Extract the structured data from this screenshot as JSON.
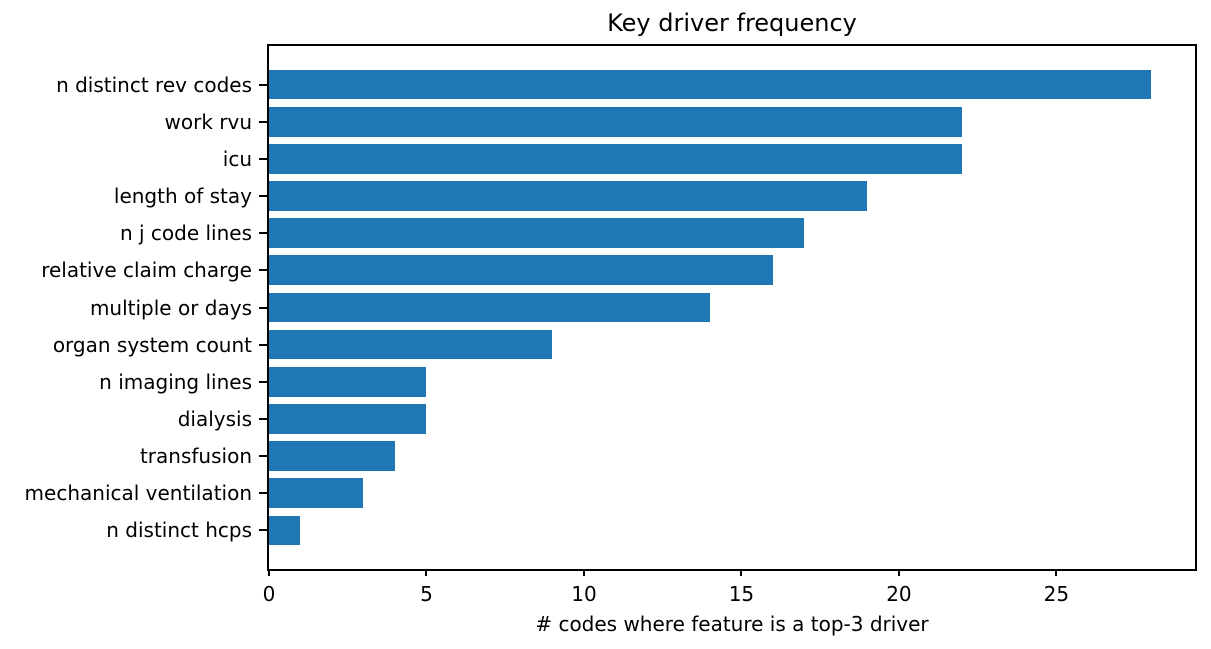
{
  "chart_data": {
    "type": "bar",
    "orientation": "horizontal",
    "title": "Key driver frequency",
    "xlabel": "# codes where feature is a top-3 driver",
    "ylabel": "",
    "categories": [
      "n distinct rev codes",
      "work rvu",
      "icu",
      "length of stay",
      "n j code lines",
      "relative claim charge",
      "multiple or days",
      "organ system count",
      "n imaging lines",
      "dialysis",
      "transfusion",
      "mechanical ventilation",
      "n distinct hcps"
    ],
    "values": [
      28,
      22,
      22,
      19,
      17,
      16,
      14,
      9,
      5,
      5,
      4,
      3,
      1
    ],
    "xticks": [
      0,
      5,
      10,
      15,
      20,
      25
    ],
    "xlim": [
      0,
      29.4
    ],
    "bar_color": "#1f77b4",
    "axis_color": "#000000",
    "grid": false,
    "legend": null
  }
}
